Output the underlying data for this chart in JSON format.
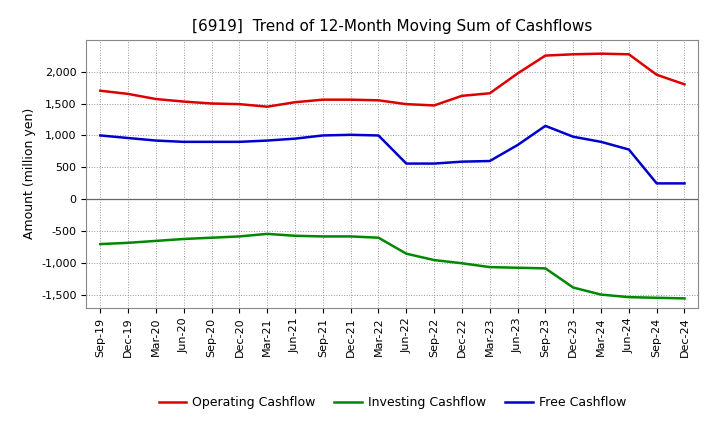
{
  "title": "[6919]  Trend of 12-Month Moving Sum of Cashflows",
  "ylabel": "Amount (million yen)",
  "x_labels": [
    "Sep-19",
    "Dec-19",
    "Mar-20",
    "Jun-20",
    "Sep-20",
    "Dec-20",
    "Mar-21",
    "Jun-21",
    "Sep-21",
    "Dec-21",
    "Mar-22",
    "Jun-22",
    "Sep-22",
    "Dec-22",
    "Mar-23",
    "Jun-23",
    "Sep-23",
    "Dec-23",
    "Mar-24",
    "Jun-24",
    "Sep-24",
    "Dec-24"
  ],
  "operating": [
    1700,
    1650,
    1570,
    1530,
    1500,
    1490,
    1450,
    1520,
    1560,
    1560,
    1550,
    1490,
    1470,
    1620,
    1660,
    1970,
    2250,
    2270,
    2280,
    2270,
    1950,
    1800
  ],
  "investing": [
    -700,
    -680,
    -650,
    -620,
    -600,
    -580,
    -540,
    -570,
    -580,
    -580,
    -600,
    -850,
    -950,
    -1000,
    -1060,
    -1070,
    -1080,
    -1380,
    -1490,
    -1530,
    -1540,
    -1550
  ],
  "free": [
    1000,
    960,
    920,
    900,
    900,
    900,
    920,
    950,
    1000,
    1010,
    1000,
    560,
    560,
    590,
    600,
    850,
    1150,
    980,
    900,
    780,
    250,
    250
  ],
  "operating_color": "#dd0000",
  "investing_color": "#008800",
  "free_color": "#0000cc",
  "ylim": [
    -1700,
    2500
  ],
  "yticks": [
    -1500,
    -1000,
    -500,
    0,
    500,
    1000,
    1500,
    2000
  ],
  "background_color": "#ffffff",
  "grid_color": "#999999",
  "title_fontsize": 11,
  "axis_fontsize": 9,
  "tick_fontsize": 8,
  "legend_fontsize": 9
}
